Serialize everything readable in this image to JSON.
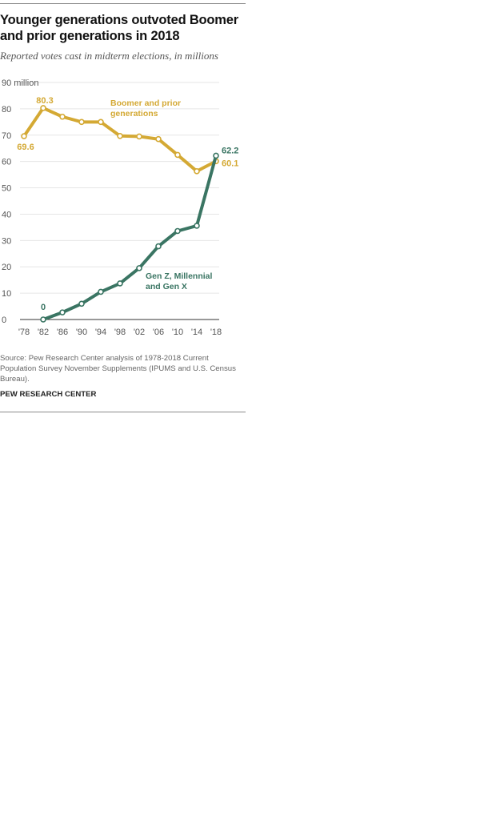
{
  "title": "Younger generations outvoted Boomer and prior generations in 2018",
  "subtitle": "Reported votes cast in midterm elections, in millions",
  "source": "Source: Pew Research Center analysis of 1978-2018 Current Population Survey November Supplements (IPUMS and U.S. Census Bureau).",
  "credit": "PEW RESEARCH CENTER",
  "colors": {
    "boomer": "#d4a934",
    "genx": "#3a7563",
    "grid": "#e6e6e6",
    "axis": "#333333"
  },
  "chart_data": {
    "type": "line",
    "categories": [
      "'78",
      "'82",
      "'86",
      "'90",
      "'94",
      "'98",
      "'02",
      "'06",
      "'10",
      "'14",
      "'18"
    ],
    "ylim": [
      0,
      90
    ],
    "y_ticks": [
      "0",
      "10",
      "20",
      "30",
      "40",
      "50",
      "60",
      "70",
      "80",
      "90 million"
    ],
    "grid": true,
    "series": [
      {
        "name": "Boomer and prior generations",
        "label_lines": [
          "Boomer and prior",
          "generations"
        ],
        "color": "#d4a934",
        "values": [
          69.6,
          80.3,
          77,
          75,
          75,
          69.7,
          69.5,
          68.5,
          62.5,
          56.3,
          60.1
        ],
        "data_labels": {
          "0": "69.6",
          "1": "80.3",
          "10": "60.1"
        }
      },
      {
        "name": "Gen Z, Millennial and Gen X",
        "label_lines": [
          "Gen Z, Millennial",
          "and Gen X"
        ],
        "color": "#3a7563",
        "values": [
          null,
          0,
          2.7,
          6,
          10.5,
          13.7,
          19.5,
          27.8,
          33.6,
          35.6,
          62.2
        ],
        "data_labels": {
          "1": "0",
          "10": "62.2"
        }
      }
    ]
  }
}
